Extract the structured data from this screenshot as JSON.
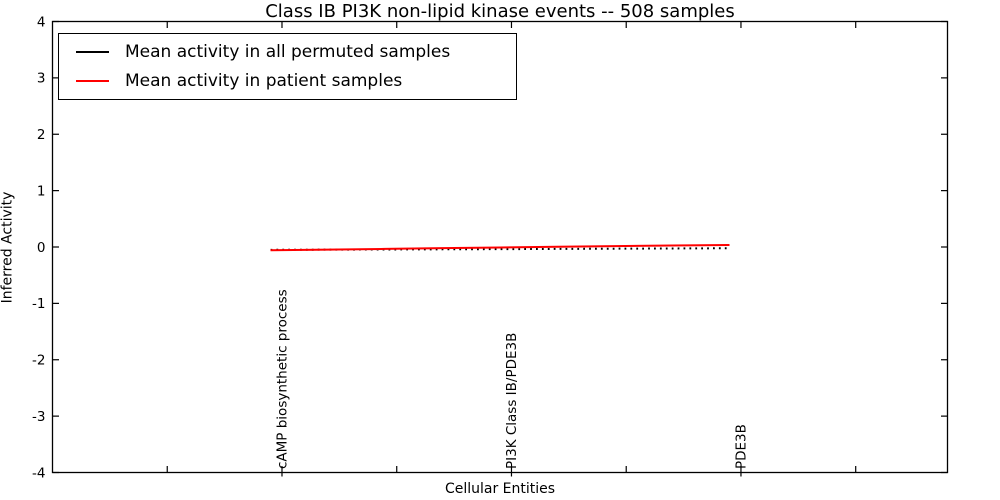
{
  "chart_data": {
    "type": "line",
    "title": "Class IB PI3K non-lipid kinase events -- 508 samples",
    "xlabel": "Cellular Entities",
    "ylabel": "Inferred Activity",
    "xlim": [
      0,
      7.8
    ],
    "ylim": [
      -4,
      4
    ],
    "yticks": [
      4,
      3,
      2,
      1,
      0,
      -1,
      -2,
      -3,
      -4
    ],
    "xticks": [
      1,
      2,
      3,
      4,
      5,
      6,
      7
    ],
    "xtick_labels": {
      "2": "cAMP biosynthetic process",
      "4": "PI3K Class IB/PDE3B",
      "6": "PDE3B"
    },
    "grid": false,
    "approx_n_entities": 77,
    "legend": {
      "position": "upper-left",
      "items": [
        {
          "label": "Mean activity in all permuted samples",
          "color": "#000000",
          "style": "dotted"
        },
        {
          "label": "Mean activity in patient samples",
          "color": "#ff0000",
          "style": "solid"
        }
      ]
    },
    "series": [
      {
        "name": "Mean activity in all permuted samples",
        "color": "#000000",
        "line_style": "dotted-markers",
        "x": [
          1.9,
          2.4,
          2.9,
          3.4,
          3.9,
          4.4,
          4.9,
          5.4,
          5.9
        ],
        "y": [
          -0.05,
          -0.047,
          -0.044,
          -0.041,
          -0.038,
          -0.034,
          -0.03,
          -0.026,
          -0.022
        ]
      },
      {
        "name": "Mean activity in patient samples",
        "color": "#ff0000",
        "line_style": "solid",
        "x": [
          1.9,
          2.4,
          2.9,
          3.4,
          3.9,
          4.4,
          4.9,
          5.4,
          5.9
        ],
        "y": [
          -0.058,
          -0.046,
          -0.034,
          -0.021,
          -0.008,
          0.004,
          0.016,
          0.027,
          0.035
        ]
      }
    ],
    "axis_color": "#000000",
    "background_color": "#ffffff"
  }
}
